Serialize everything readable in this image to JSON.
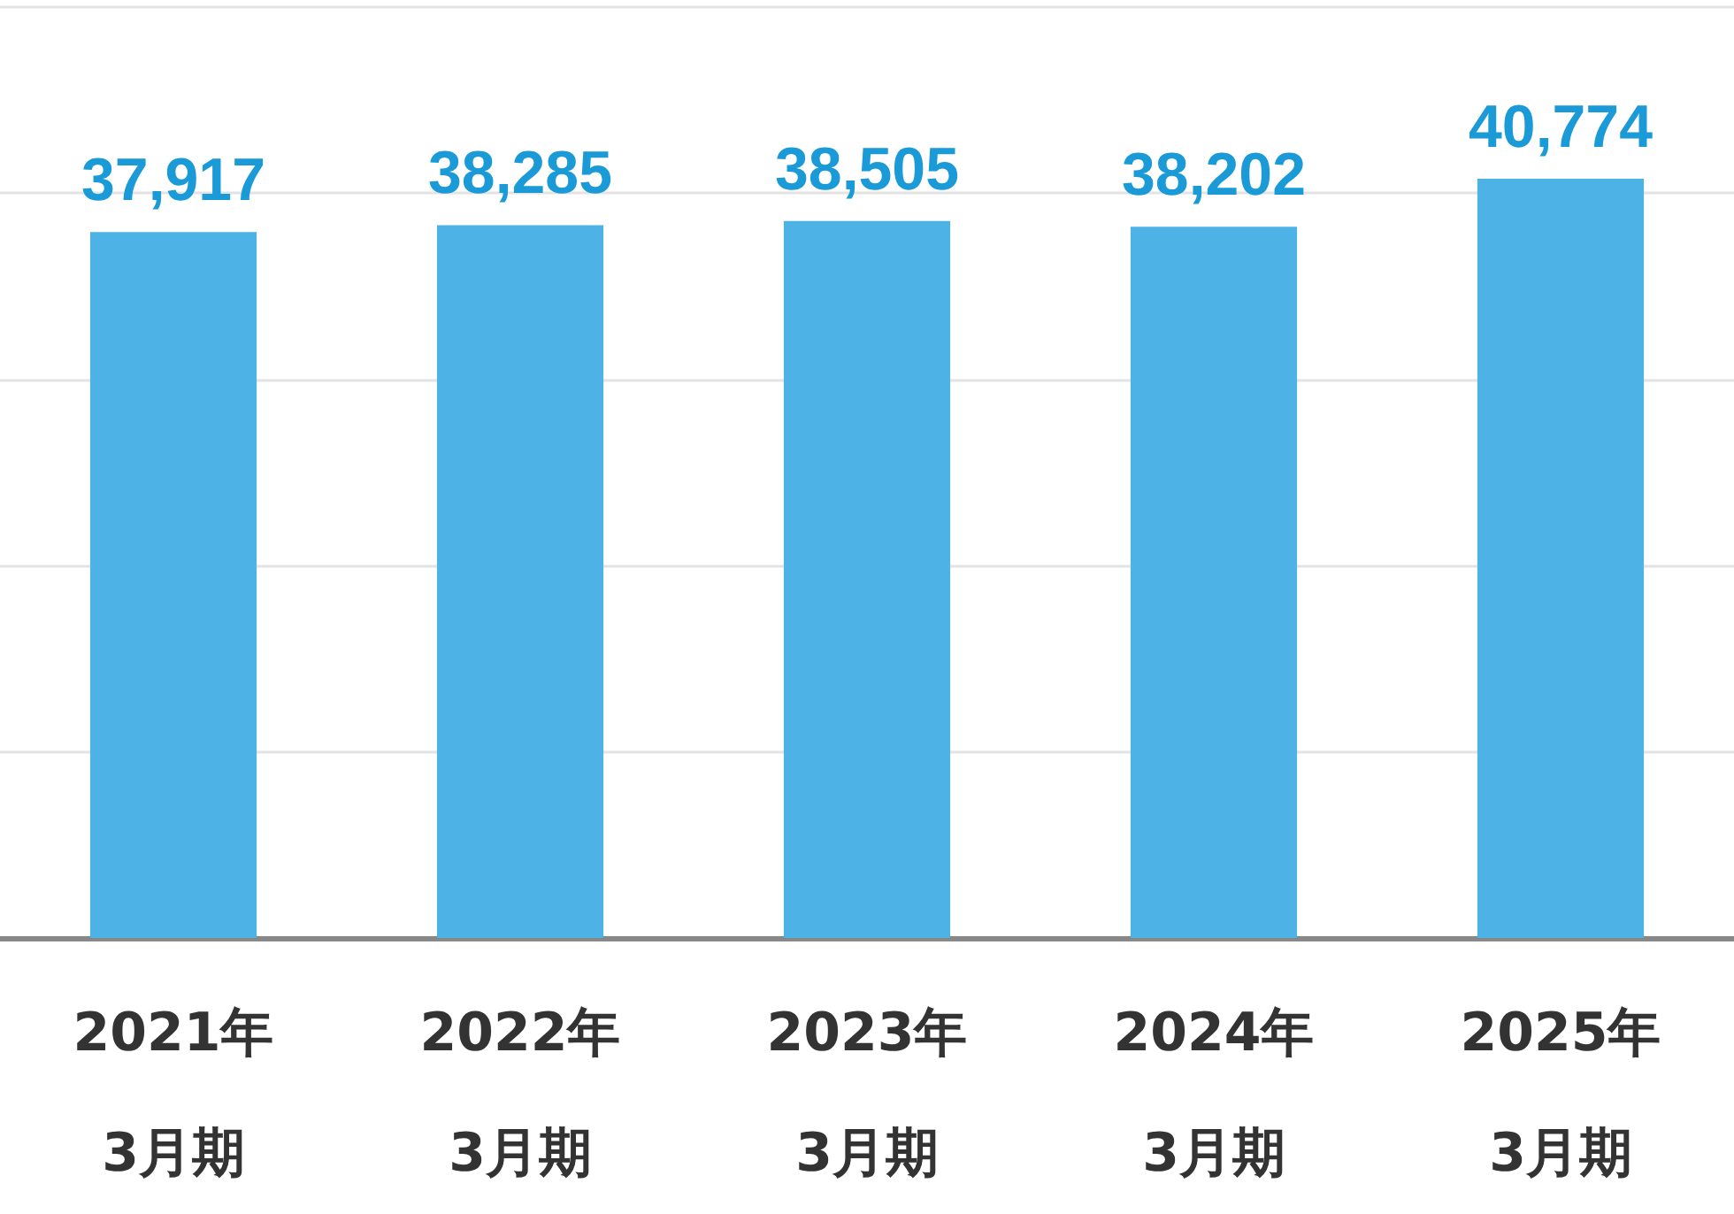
{
  "chart_data": {
    "type": "bar",
    "categories": [
      "2021年\n3月期",
      "2022年\n3月期",
      "2023年\n3月期",
      "2024年\n3月期",
      "2025年\n3月期"
    ],
    "values": [
      37917,
      38285,
      38505,
      38202,
      40774
    ],
    "value_labels": [
      "37,917",
      "38,285",
      "38,505",
      "38,202",
      "40,774"
    ],
    "color": "#4db3e6",
    "grid": "y",
    "tick_labels": "x"
  }
}
